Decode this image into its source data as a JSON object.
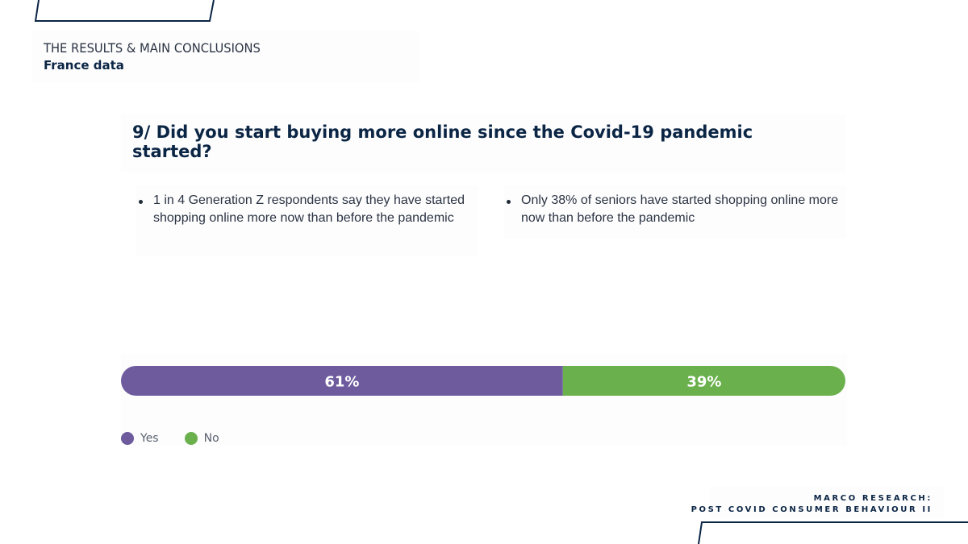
{
  "header": {
    "section_title": "THE RESULTS & MAIN CONCLUSIONS",
    "subtitle": "France data"
  },
  "question": {
    "text": "9/ Did you start buying more online since the Covid-19 pandemic started?"
  },
  "bullets": [
    {
      "text": "1 in 4 Generation Z respondents say they have started shopping online more now than before the pandemic"
    },
    {
      "text": "Only 38% of seniors have started shopping online more now than before the pandemic"
    }
  ],
  "chart_data": {
    "type": "bar",
    "orientation": "horizontal-stacked-100",
    "series": [
      {
        "name": "Yes",
        "value": 61,
        "label": "61%",
        "color": "#6d5b9e"
      },
      {
        "name": "No",
        "value": 39,
        "label": "39%",
        "color": "#6ab04c"
      }
    ],
    "xlim": [
      0,
      100
    ],
    "legend": {
      "placement": "bottom-left",
      "items": [
        "Yes",
        "No"
      ]
    },
    "grid": false
  },
  "footer": {
    "line1": "MARCO RESEARCH:",
    "line2": "POST COVID CONSUMER BEHAVIOUR II"
  },
  "colors": {
    "navy": "#0b2545",
    "yes": "#6d5b9e",
    "no": "#6ab04c"
  }
}
